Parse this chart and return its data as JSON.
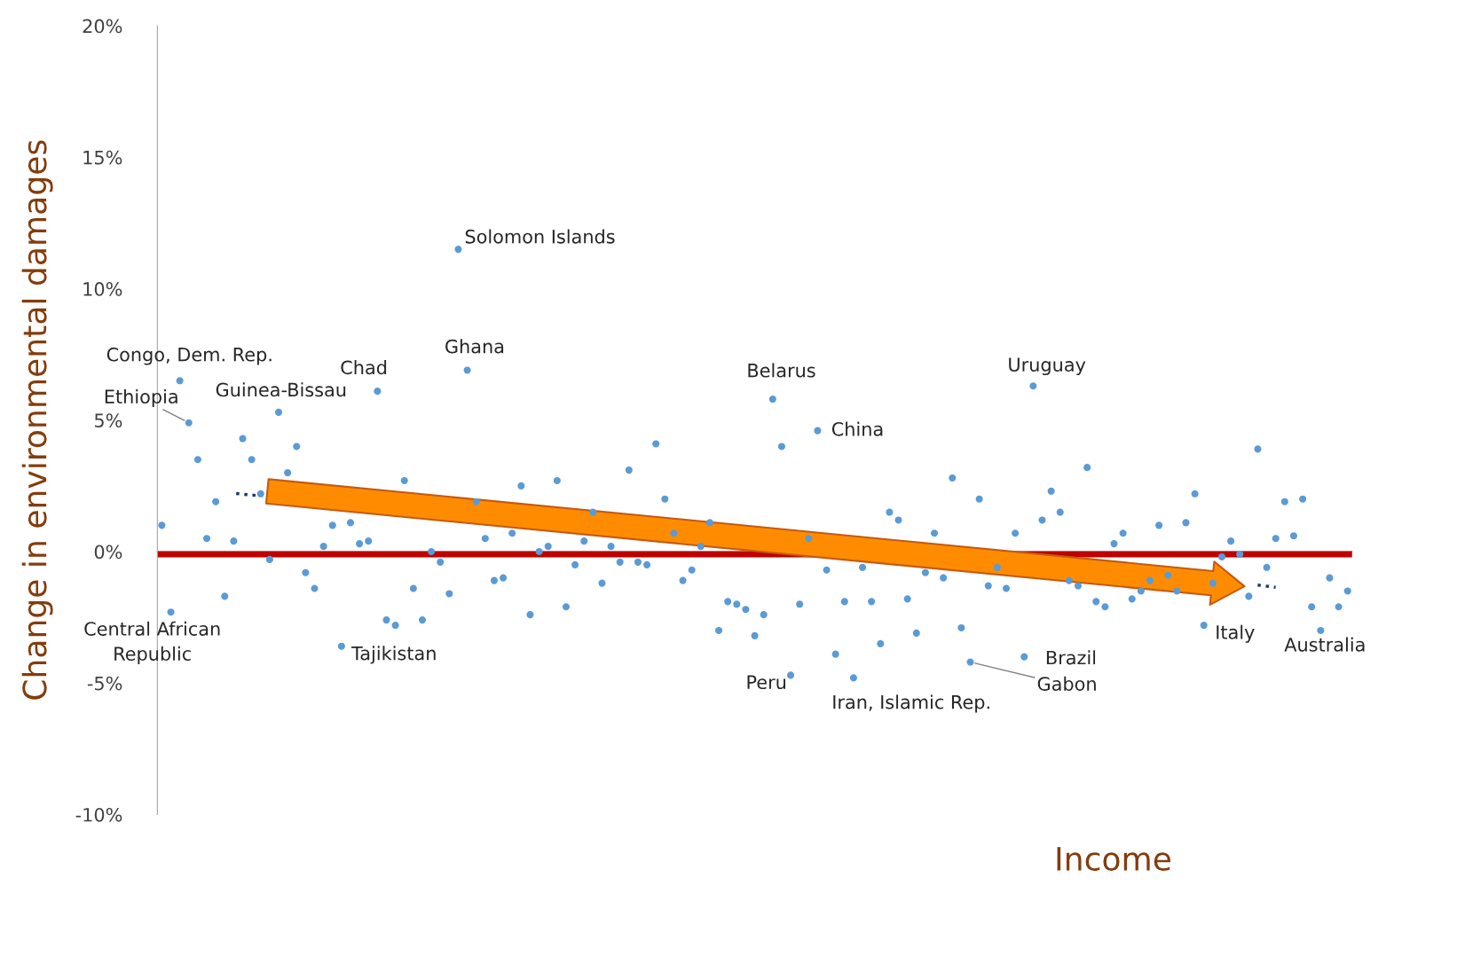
{
  "chart_data": {
    "type": "scatter",
    "ylabel": "Change in environmental damages",
    "xlabel": "Income",
    "ylim": [
      -10,
      20
    ],
    "yticks": [
      {
        "value": -10,
        "label": "-10%"
      },
      {
        "value": -5,
        "label": "-5%"
      },
      {
        "value": 0,
        "label": "0%"
      },
      {
        "value": 5,
        "label": "5%"
      },
      {
        "value": 10,
        "label": "10%"
      },
      {
        "value": 15,
        "label": "15%"
      },
      {
        "value": 20,
        "label": "20%"
      }
    ],
    "tick_labels": "y",
    "grid": false,
    "legend": false,
    "marker": "circle",
    "categories": [
      null,
      null,
      null,
      null,
      null,
      null,
      null,
      null,
      null,
      null,
      null,
      null,
      null,
      null,
      null,
      null,
      null,
      null,
      null,
      null,
      null,
      null,
      null,
      null,
      null,
      null,
      null,
      null,
      null,
      null,
      null,
      null,
      null,
      null,
      null,
      null,
      null,
      null,
      null,
      null,
      null,
      null,
      null,
      null,
      null,
      null,
      null,
      null,
      null,
      null,
      null,
      null,
      null,
      null,
      null,
      null,
      null,
      null,
      null,
      null,
      null,
      null,
      null,
      null,
      null,
      null,
      null,
      null,
      null,
      null,
      null,
      null,
      null,
      null,
      null,
      null,
      null,
      null,
      null,
      null,
      null,
      null,
      null,
      null,
      null,
      null,
      null,
      null,
      null,
      null,
      null,
      null,
      null,
      null,
      null,
      null,
      null,
      null,
      null,
      null,
      null,
      null,
      null,
      null,
      null,
      null,
      null,
      null,
      null,
      null,
      null,
      null,
      null,
      null,
      null,
      null,
      null,
      null,
      null,
      null,
      null,
      null,
      null,
      null,
      null,
      null,
      null,
      null,
      null,
      null,
      null,
      null,
      null
    ],
    "series": [
      {
        "color": "#5b9bd5",
        "values": [
          1.0,
          -2.3,
          6.5,
          4.9,
          3.5,
          0.5,
          1.9,
          -1.7,
          0.4,
          4.3,
          3.5,
          2.2,
          -0.3,
          5.3,
          3.0,
          4.0,
          -0.8,
          -1.4,
          0.2,
          1.0,
          -3.6,
          1.1,
          0.3,
          0.4,
          6.1,
          -2.6,
          -2.8,
          2.7,
          -1.4,
          -2.6,
          0.0,
          -0.4,
          -1.6,
          11.5,
          6.9,
          1.9,
          0.5,
          -1.1,
          -1.0,
          0.7,
          2.5,
          -2.4,
          0.0,
          0.2,
          2.7,
          -2.1,
          -0.5,
          0.4,
          1.5,
          -1.2,
          0.2,
          -0.4,
          3.1,
          -0.4,
          -0.5,
          4.1,
          2.0,
          0.7,
          -1.1,
          -0.7,
          0.2,
          1.1,
          -3.0,
          -1.9,
          -2.0,
          -2.2,
          -3.2,
          -2.4,
          5.8,
          4.0,
          -4.7,
          -2.0,
          0.5,
          4.6,
          -0.7,
          -3.9,
          -1.9,
          -4.8,
          -0.6,
          -1.9,
          -3.5,
          1.5,
          1.2,
          -1.8,
          -3.1,
          -0.8,
          0.7,
          -1.0,
          2.8,
          -2.9,
          -4.2,
          2.0,
          -1.3,
          -0.6,
          -1.4,
          0.7,
          -4.0,
          6.3,
          1.2,
          2.3,
          1.5,
          -1.1,
          -1.3,
          3.2,
          -1.9,
          -2.1,
          0.3,
          0.7,
          -1.8,
          -1.5,
          -1.1,
          1.0,
          -0.9,
          -1.5,
          1.1,
          2.2,
          -2.8,
          -1.2,
          -0.2,
          0.4,
          -0.1,
          -1.7,
          3.9,
          -0.6,
          0.5,
          1.9,
          0.6,
          2.0,
          -2.1,
          -3.0,
          -1.0,
          -2.1,
          -1.5
        ]
      }
    ],
    "ref_lines": [
      {
        "axis": "y",
        "value": -0.1,
        "color": "#c00000"
      }
    ],
    "annotations": [
      "Congo, Dem. Rep.",
      "Ethiopia",
      "Guinea-Bissau",
      "Chad",
      "Solomon Islands",
      "Ghana",
      "Belarus",
      "China",
      "Uruguay",
      "Central African\nRepublic",
      "Tajikistan",
      "Peru",
      "Iran, Islamic Rep.",
      "Brazil",
      "Gabon",
      "Italy",
      "Australia"
    ]
  }
}
